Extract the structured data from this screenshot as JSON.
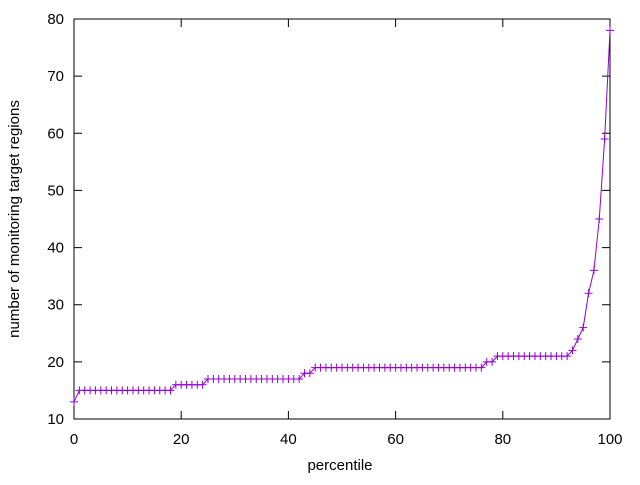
{
  "chart_data": {
    "type": "line",
    "xlabel": "percentile",
    "ylabel": "number of monitoring target regions",
    "x": [
      0,
      1,
      2,
      3,
      4,
      5,
      6,
      7,
      8,
      9,
      10,
      11,
      12,
      13,
      14,
      15,
      16,
      17,
      18,
      19,
      20,
      21,
      22,
      23,
      24,
      25,
      26,
      27,
      28,
      29,
      30,
      31,
      32,
      33,
      34,
      35,
      36,
      37,
      38,
      39,
      40,
      41,
      42,
      43,
      44,
      45,
      46,
      47,
      48,
      49,
      50,
      51,
      52,
      53,
      54,
      55,
      56,
      57,
      58,
      59,
      60,
      61,
      62,
      63,
      64,
      65,
      66,
      67,
      68,
      69,
      70,
      71,
      72,
      73,
      74,
      75,
      76,
      77,
      78,
      79,
      80,
      81,
      82,
      83,
      84,
      85,
      86,
      87,
      88,
      89,
      90,
      91,
      92,
      93,
      94,
      95,
      96,
      97,
      98,
      99,
      100
    ],
    "values": [
      13,
      15,
      15,
      15,
      15,
      15,
      15,
      15,
      15,
      15,
      15,
      15,
      15,
      15,
      15,
      15,
      15,
      15,
      15,
      16,
      16,
      16,
      16,
      16,
      16,
      17,
      17,
      17,
      17,
      17,
      17,
      17,
      17,
      17,
      17,
      17,
      17,
      17,
      17,
      17,
      17,
      17,
      17,
      18,
      18,
      19,
      19,
      19,
      19,
      19,
      19,
      19,
      19,
      19,
      19,
      19,
      19,
      19,
      19,
      19,
      19,
      19,
      19,
      19,
      19,
      19,
      19,
      19,
      19,
      19,
      19,
      19,
      19,
      19,
      19,
      19,
      19,
      20,
      20,
      21,
      21,
      21,
      21,
      21,
      21,
      21,
      21,
      21,
      21,
      21,
      21,
      21,
      21,
      22,
      24,
      26,
      32,
      36,
      45,
      59,
      78
    ],
    "color": "#9400d3",
    "marker": "+",
    "xlim": [
      0,
      100
    ],
    "xticks": [
      0,
      20,
      40,
      60,
      80,
      100
    ],
    "ylim": [
      10,
      80
    ],
    "yticks": [
      10,
      20,
      30,
      40,
      50,
      60,
      70,
      80
    ],
    "grid": false
  }
}
